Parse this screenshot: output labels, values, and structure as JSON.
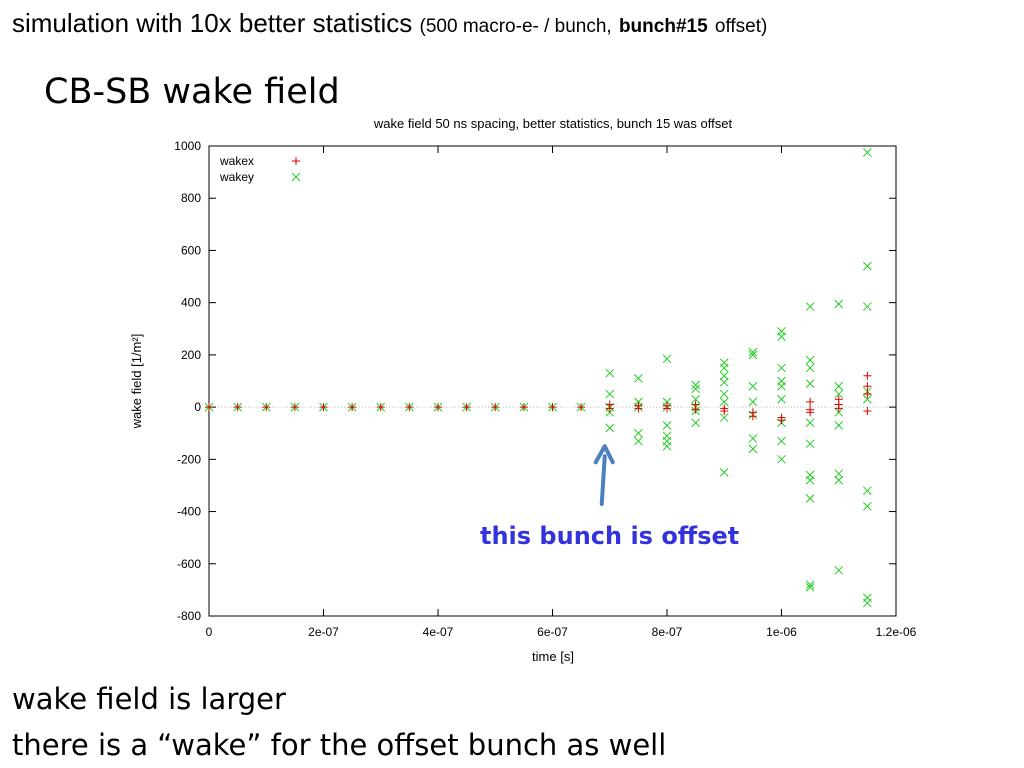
{
  "slide": {
    "heading_main": "simulation with 10x better statistics",
    "heading_paren_open": "(500 macro-e- / bunch,",
    "heading_bold": "bunch#15",
    "heading_paren_close": "offset)",
    "subheading": "CB-SB wake field",
    "callout": "this bunch is offset",
    "bullets": [
      "wake field is larger",
      "there is a “wake” for the offset bunch as well"
    ]
  },
  "colors": {
    "wakex": "#dd0000",
    "wakey": "#22cc22",
    "arrow": "#4a7fc0",
    "callout": "#3333dd"
  },
  "chart_data": {
    "type": "scatter",
    "title": "wake field 50 ns spacing, better statistics, bunch 15 was offset",
    "xlabel": "time [s]",
    "ylabel": "wake field [1/m²]",
    "xlim": [
      0,
      1.2e-06
    ],
    "ylim": [
      -800,
      1000
    ],
    "x_ticks": [
      0,
      2e-07,
      4e-07,
      6e-07,
      8e-07,
      1e-06,
      1.2e-06
    ],
    "x_tick_labels": [
      "0",
      "2e-07",
      "4e-07",
      "6e-07",
      "8e-07",
      "1e-06",
      "1.2e-06"
    ],
    "y_ticks": [
      -800,
      -600,
      -400,
      -200,
      0,
      200,
      400,
      600,
      800,
      1000
    ],
    "y_tick_labels": [
      "-800",
      "-600",
      "-400",
      "-200",
      "0",
      "200",
      "400",
      "600",
      "800",
      "1000"
    ],
    "legend_position": "top-left",
    "series": [
      {
        "name": "wakex",
        "marker": "+",
        "points": [
          [
            0,
            0
          ],
          [
            5e-08,
            0
          ],
          [
            1e-07,
            0
          ],
          [
            1.5e-07,
            0
          ],
          [
            2e-07,
            0
          ],
          [
            2.5e-07,
            0
          ],
          [
            3e-07,
            0
          ],
          [
            3.5e-07,
            0
          ],
          [
            4e-07,
            0
          ],
          [
            4.5e-07,
            0
          ],
          [
            5e-07,
            0
          ],
          [
            5.5e-07,
            0
          ],
          [
            6e-07,
            0
          ],
          [
            6.5e-07,
            0
          ],
          [
            7e-07,
            10
          ],
          [
            7e-07,
            -5
          ],
          [
            7.5e-07,
            5
          ],
          [
            7.5e-07,
            -5
          ],
          [
            8e-07,
            5
          ],
          [
            8e-07,
            -5
          ],
          [
            8.5e-07,
            10
          ],
          [
            8.5e-07,
            -10
          ],
          [
            9e-07,
            -5
          ],
          [
            9e-07,
            -15
          ],
          [
            9.5e-07,
            -20
          ],
          [
            9.5e-07,
            -35
          ],
          [
            1e-06,
            -40
          ],
          [
            1e-06,
            -50
          ],
          [
            1.05e-06,
            20
          ],
          [
            1.05e-06,
            -10
          ],
          [
            1.05e-06,
            -20
          ],
          [
            1.1e-06,
            30
          ],
          [
            1.1e-06,
            10
          ],
          [
            1.1e-06,
            -5
          ],
          [
            1.15e-06,
            120
          ],
          [
            1.15e-06,
            80
          ],
          [
            1.15e-06,
            50
          ],
          [
            1.15e-06,
            -15
          ]
        ]
      },
      {
        "name": "wakey",
        "marker": "x",
        "points": [
          [
            0,
            0
          ],
          [
            5e-08,
            0
          ],
          [
            1e-07,
            0
          ],
          [
            1.5e-07,
            0
          ],
          [
            2e-07,
            0
          ],
          [
            2.5e-07,
            0
          ],
          [
            3e-07,
            0
          ],
          [
            3.5e-07,
            0
          ],
          [
            4e-07,
            0
          ],
          [
            4.5e-07,
            0
          ],
          [
            5e-07,
            0
          ],
          [
            5.5e-07,
            0
          ],
          [
            6e-07,
            0
          ],
          [
            6.5e-07,
            0
          ],
          [
            7e-07,
            130
          ],
          [
            7e-07,
            50
          ],
          [
            7e-07,
            0
          ],
          [
            7e-07,
            -20
          ],
          [
            7e-07,
            -80
          ],
          [
            7.5e-07,
            110
          ],
          [
            7.5e-07,
            20
          ],
          [
            7.5e-07,
            0
          ],
          [
            7.5e-07,
            -100
          ],
          [
            7.5e-07,
            -130
          ],
          [
            8e-07,
            185
          ],
          [
            8e-07,
            20
          ],
          [
            8e-07,
            0
          ],
          [
            8e-07,
            -70
          ],
          [
            8e-07,
            -110
          ],
          [
            8e-07,
            -130
          ],
          [
            8e-07,
            -150
          ],
          [
            8.5e-07,
            85
          ],
          [
            8.5e-07,
            70
          ],
          [
            8.5e-07,
            30
          ],
          [
            8.5e-07,
            0
          ],
          [
            8.5e-07,
            -15
          ],
          [
            8.5e-07,
            -60
          ],
          [
            9e-07,
            170
          ],
          [
            9e-07,
            150
          ],
          [
            9e-07,
            120
          ],
          [
            9e-07,
            95
          ],
          [
            9e-07,
            50
          ],
          [
            9e-07,
            20
          ],
          [
            9e-07,
            -40
          ],
          [
            9e-07,
            -250
          ],
          [
            9.5e-07,
            210
          ],
          [
            9.5e-07,
            200
          ],
          [
            9.5e-07,
            80
          ],
          [
            9.5e-07,
            20
          ],
          [
            9.5e-07,
            -30
          ],
          [
            9.5e-07,
            -120
          ],
          [
            9.5e-07,
            -160
          ],
          [
            1e-06,
            290
          ],
          [
            1e-06,
            270
          ],
          [
            1e-06,
            150
          ],
          [
            1e-06,
            100
          ],
          [
            1e-06,
            80
          ],
          [
            1e-06,
            30
          ],
          [
            1e-06,
            -60
          ],
          [
            1e-06,
            -130
          ],
          [
            1e-06,
            -200
          ],
          [
            1.05e-06,
            385
          ],
          [
            1.05e-06,
            180
          ],
          [
            1.05e-06,
            150
          ],
          [
            1.05e-06,
            90
          ],
          [
            1.05e-06,
            -60
          ],
          [
            1.05e-06,
            -140
          ],
          [
            1.05e-06,
            -260
          ],
          [
            1.05e-06,
            -280
          ],
          [
            1.05e-06,
            -350
          ],
          [
            1.05e-06,
            -680
          ],
          [
            1.05e-06,
            -690
          ],
          [
            1.1e-06,
            395
          ],
          [
            1.1e-06,
            80
          ],
          [
            1.1e-06,
            50
          ],
          [
            1.1e-06,
            -20
          ],
          [
            1.1e-06,
            -70
          ],
          [
            1.1e-06,
            -255
          ],
          [
            1.1e-06,
            -280
          ],
          [
            1.1e-06,
            -625
          ],
          [
            1.15e-06,
            975
          ],
          [
            1.15e-06,
            540
          ],
          [
            1.15e-06,
            385
          ],
          [
            1.15e-06,
            60
          ],
          [
            1.15e-06,
            30
          ],
          [
            1.15e-06,
            -320
          ],
          [
            1.15e-06,
            -380
          ],
          [
            1.15e-06,
            -730
          ],
          [
            1.15e-06,
            -750
          ]
        ]
      }
    ]
  }
}
